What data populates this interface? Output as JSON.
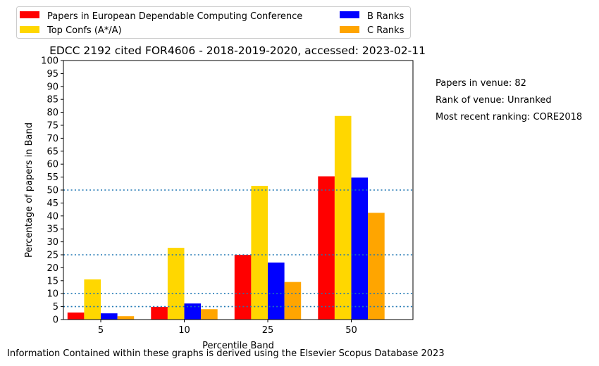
{
  "chart_data": {
    "type": "bar",
    "title": "EDCC 2192 cited FOR4606 - 2018-2019-2020, accessed: 2023-02-11",
    "xlabel": "Percentile Band",
    "ylabel": "Percentage of papers in Band",
    "categories": [
      "5",
      "10",
      "25",
      "50"
    ],
    "ylim": [
      0,
      100
    ],
    "yticks": [
      0,
      5,
      10,
      15,
      20,
      25,
      30,
      35,
      40,
      45,
      50,
      55,
      60,
      65,
      70,
      75,
      80,
      85,
      90,
      95,
      100
    ],
    "reference_lines": [
      5,
      10,
      25,
      50
    ],
    "grid": false,
    "legend_placement": "top-left, above plot, 2 columns",
    "series": [
      {
        "name": "Papers in European Dependable Computing Conference",
        "color": "#ff0000",
        "values": [
          2.7,
          4.9,
          25.0,
          55.3
        ]
      },
      {
        "name": "Top Confs (A*/A)",
        "color": "#ffd700",
        "values": [
          15.5,
          27.7,
          51.6,
          78.6
        ]
      },
      {
        "name": "B Ranks",
        "color": "#0000ff",
        "values": [
          2.4,
          6.2,
          22.0,
          54.8
        ]
      },
      {
        "name": "C Ranks",
        "color": "#ffa500",
        "values": [
          1.3,
          4.0,
          14.5,
          41.2
        ]
      }
    ],
    "reference_line_color": "#1f77b4"
  },
  "info": {
    "papers_in_venue": "Papers in venue: 82",
    "rank_of_venue": "Rank of venue: Unranked",
    "most_recent_ranking": "Most recent ranking: CORE2018"
  },
  "footer": "Information Contained within these graphs is derived using the Elsevier Scopus Database 2023"
}
